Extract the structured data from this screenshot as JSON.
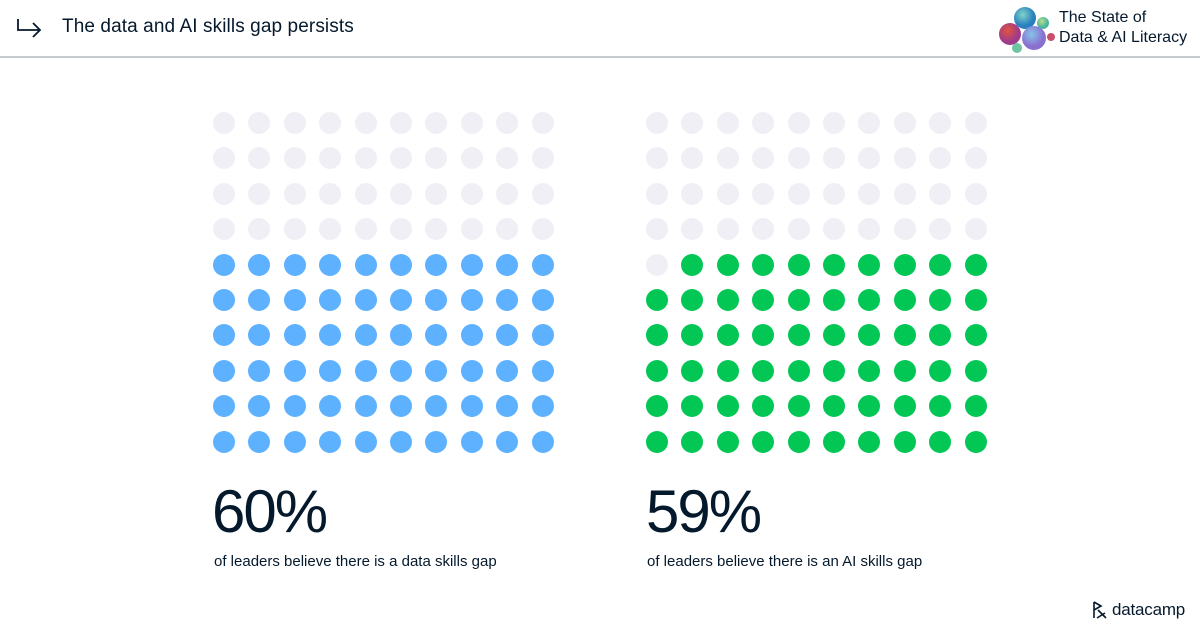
{
  "header": {
    "title": "The data and AI skills gap persists",
    "report_title_line1": "The State of",
    "report_title_line2": "Data & AI Literacy"
  },
  "footer": {
    "brand": "datacamp"
  },
  "colors": {
    "empty": "#efeff5",
    "data": "#5eb1ff",
    "ai": "#03c754",
    "text": "#05192d"
  },
  "panels": [
    {
      "value": "60%",
      "caption": "of leaders believe there is a data skills gap",
      "filled": 60,
      "color": "#5eb1ff"
    },
    {
      "value": "59%",
      "caption": "of leaders believe there is an AI skills gap",
      "filled": 59,
      "color": "#03c754"
    }
  ],
  "chart_data": [
    {
      "type": "waffle",
      "title": "of leaders believe there is a data skills gap",
      "grid": [
        10,
        10
      ],
      "values": {
        "filled": 60,
        "total": 100
      },
      "label": "60%",
      "fill_color": "#5eb1ff",
      "empty_color": "#efeff5"
    },
    {
      "type": "waffle",
      "title": "of leaders believe there is an AI skills gap",
      "grid": [
        10,
        10
      ],
      "values": {
        "filled": 59,
        "total": 100
      },
      "label": "59%",
      "fill_color": "#03c754",
      "empty_color": "#efeff5"
    }
  ]
}
